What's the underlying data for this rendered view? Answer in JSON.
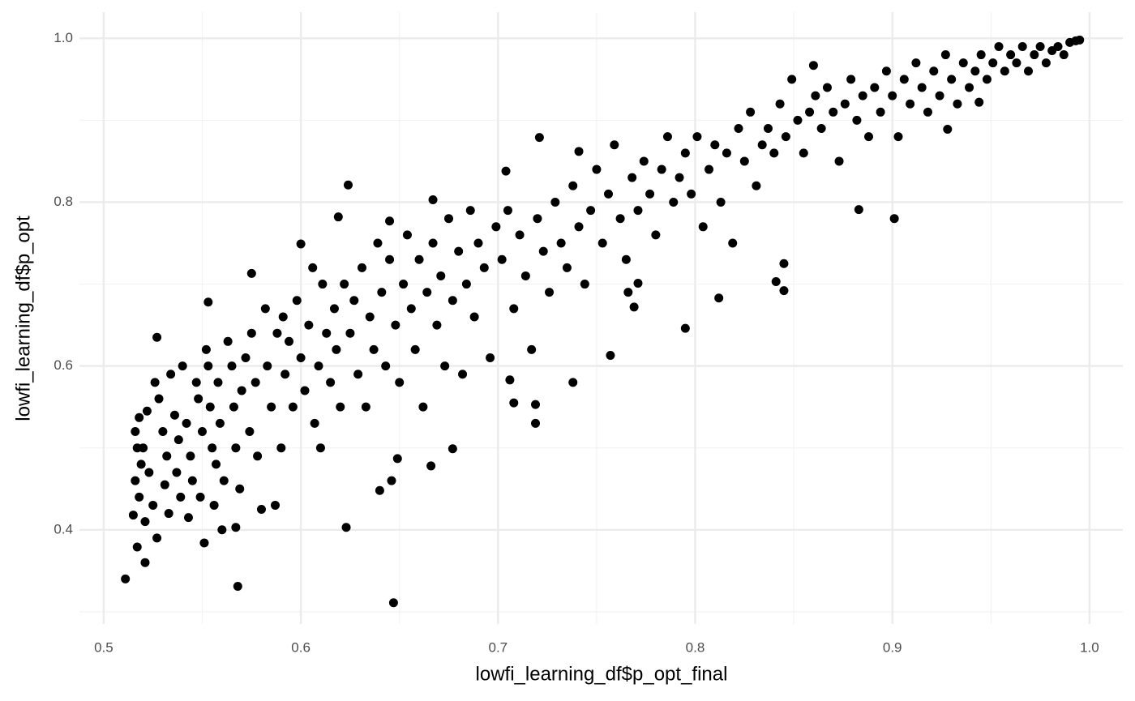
{
  "chart_data": {
    "type": "scatter",
    "x_label": "lowfi_learning_df$p_opt_final",
    "y_label": "lowfi_learning_df$p_opt",
    "color": "#000000",
    "grid": true,
    "xlim": [
      0.4877,
      1.0169
    ],
    "ylim": [
      0.285,
      1.032
    ],
    "xticks": [
      0.5,
      0.6,
      0.7,
      0.8,
      0.9,
      {
        "value": 1,
        "label": "1.0"
      }
    ],
    "yticks": [
      0.4,
      0.6,
      0.8,
      {
        "value": 1,
        "label": "1.0"
      }
    ],
    "x": [
      0.511,
      0.568,
      0.647,
      0.623,
      0.567,
      0.624,
      0.619,
      0.721,
      0.704,
      0.883,
      0.901,
      0.795,
      0.812,
      0.757,
      0.738,
      0.719,
      0.719,
      0.708,
      0.706,
      0.677,
      0.666,
      0.649,
      0.646,
      0.64,
      0.845,
      0.841,
      0.845,
      0.769,
      0.766,
      0.771,
      0.86,
      0.928,
      0.944,
      0.521,
      0.517,
      0.527,
      0.553,
      0.6,
      0.575,
      0.645,
      0.667,
      0.741,
      0.515,
      0.518,
      0.516,
      0.519,
      0.517,
      0.516,
      0.518,
      0.522,
      0.52,
      0.523,
      0.521,
      0.525,
      0.527,
      0.526,
      0.528,
      0.53,
      0.532,
      0.531,
      0.533,
      0.534,
      0.536,
      0.538,
      0.537,
      0.539,
      0.54,
      0.542,
      0.544,
      0.545,
      0.543,
      0.547,
      0.548,
      0.55,
      0.549,
      0.551,
      0.552,
      0.553,
      0.554,
      0.555,
      0.556,
      0.557,
      0.558,
      0.559,
      0.56,
      0.561,
      0.563,
      0.565,
      0.566,
      0.567,
      0.569,
      0.57,
      0.572,
      0.574,
      0.575,
      0.577,
      0.578,
      0.58,
      0.582,
      0.583,
      0.585,
      0.587,
      0.588,
      0.59,
      0.591,
      0.592,
      0.594,
      0.596,
      0.598,
      0.6,
      0.602,
      0.604,
      0.606,
      0.607,
      0.609,
      0.61,
      0.611,
      0.613,
      0.615,
      0.617,
      0.618,
      0.62,
      0.622,
      0.625,
      0.627,
      0.629,
      0.631,
      0.633,
      0.635,
      0.637,
      0.639,
      0.641,
      0.643,
      0.645,
      0.648,
      0.65,
      0.652,
      0.654,
      0.656,
      0.658,
      0.66,
      0.662,
      0.664,
      0.667,
      0.669,
      0.671,
      0.673,
      0.675,
      0.677,
      0.68,
      0.682,
      0.684,
      0.686,
      0.688,
      0.69,
      0.693,
      0.696,
      0.699,
      0.702,
      0.705,
      0.708,
      0.711,
      0.714,
      0.717,
      0.72,
      0.723,
      0.726,
      0.729,
      0.732,
      0.735,
      0.738,
      0.741,
      0.744,
      0.747,
      0.75,
      0.753,
      0.756,
      0.759,
      0.762,
      0.765,
      0.768,
      0.771,
      0.774,
      0.777,
      0.78,
      0.783,
      0.786,
      0.789,
      0.792,
      0.795,
      0.798,
      0.801,
      0.804,
      0.807,
      0.81,
      0.813,
      0.816,
      0.819,
      0.822,
      0.825,
      0.828,
      0.831,
      0.834,
      0.837,
      0.84,
      0.843,
      0.846,
      0.849,
      0.852,
      0.855,
      0.858,
      0.861,
      0.864,
      0.867,
      0.87,
      0.873,
      0.876,
      0.879,
      0.882,
      0.885,
      0.888,
      0.891,
      0.894,
      0.897,
      0.9,
      0.903,
      0.906,
      0.909,
      0.912,
      0.915,
      0.918,
      0.921,
      0.924,
      0.927,
      0.93,
      0.933,
      0.936,
      0.939,
      0.942,
      0.945,
      0.948,
      0.951,
      0.954,
      0.957,
      0.96,
      0.963,
      0.966,
      0.969,
      0.972,
      0.975,
      0.978,
      0.981,
      0.984,
      0.987,
      0.99,
      0.993,
      0.995
    ],
    "y": [
      0.34,
      0.331,
      0.311,
      0.403,
      0.403,
      0.821,
      0.782,
      0.879,
      0.838,
      0.791,
      0.78,
      0.646,
      0.683,
      0.613,
      0.58,
      0.53,
      0.553,
      0.555,
      0.583,
      0.499,
      0.478,
      0.487,
      0.46,
      0.448,
      0.692,
      0.703,
      0.725,
      0.672,
      0.69,
      0.701,
      0.967,
      0.889,
      0.922,
      0.36,
      0.379,
      0.635,
      0.678,
      0.749,
      0.713,
      0.777,
      0.803,
      0.862,
      0.418,
      0.44,
      0.46,
      0.48,
      0.5,
      0.52,
      0.537,
      0.545,
      0.5,
      0.47,
      0.41,
      0.43,
      0.39,
      0.58,
      0.56,
      0.52,
      0.49,
      0.455,
      0.42,
      0.59,
      0.54,
      0.51,
      0.47,
      0.44,
      0.6,
      0.53,
      0.49,
      0.46,
      0.415,
      0.58,
      0.56,
      0.52,
      0.44,
      0.384,
      0.62,
      0.6,
      0.55,
      0.5,
      0.43,
      0.48,
      0.58,
      0.53,
      0.4,
      0.46,
      0.63,
      0.6,
      0.55,
      0.5,
      0.45,
      0.57,
      0.61,
      0.52,
      0.64,
      0.58,
      0.49,
      0.425,
      0.67,
      0.6,
      0.55,
      0.43,
      0.64,
      0.5,
      0.66,
      0.59,
      0.63,
      0.55,
      0.68,
      0.61,
      0.57,
      0.65,
      0.72,
      0.53,
      0.6,
      0.5,
      0.7,
      0.64,
      0.58,
      0.67,
      0.62,
      0.55,
      0.7,
      0.64,
      0.68,
      0.59,
      0.72,
      0.55,
      0.66,
      0.62,
      0.75,
      0.69,
      0.6,
      0.73,
      0.65,
      0.58,
      0.7,
      0.76,
      0.67,
      0.62,
      0.73,
      0.55,
      0.69,
      0.75,
      0.65,
      0.71,
      0.6,
      0.78,
      0.68,
      0.74,
      0.59,
      0.7,
      0.79,
      0.66,
      0.75,
      0.72,
      0.61,
      0.77,
      0.73,
      0.79,
      0.67,
      0.76,
      0.71,
      0.62,
      0.78,
      0.74,
      0.69,
      0.8,
      0.75,
      0.72,
      0.82,
      0.77,
      0.7,
      0.79,
      0.84,
      0.75,
      0.81,
      0.87,
      0.78,
      0.73,
      0.83,
      0.79,
      0.85,
      0.81,
      0.76,
      0.84,
      0.88,
      0.8,
      0.83,
      0.86,
      0.81,
      0.88,
      0.77,
      0.84,
      0.87,
      0.8,
      0.86,
      0.75,
      0.89,
      0.85,
      0.91,
      0.82,
      0.87,
      0.89,
      0.86,
      0.92,
      0.88,
      0.95,
      0.9,
      0.86,
      0.91,
      0.93,
      0.89,
      0.94,
      0.91,
      0.85,
      0.92,
      0.95,
      0.9,
      0.93,
      0.88,
      0.94,
      0.91,
      0.96,
      0.93,
      0.88,
      0.95,
      0.92,
      0.97,
      0.94,
      0.91,
      0.96,
      0.93,
      0.98,
      0.95,
      0.92,
      0.97,
      0.94,
      0.96,
      0.98,
      0.95,
      0.97,
      0.99,
      0.96,
      0.98,
      0.97,
      0.99,
      0.96,
      0.98,
      0.99,
      0.97,
      0.985,
      0.99,
      0.98,
      0.995,
      0.997,
      0.998
    ]
  }
}
